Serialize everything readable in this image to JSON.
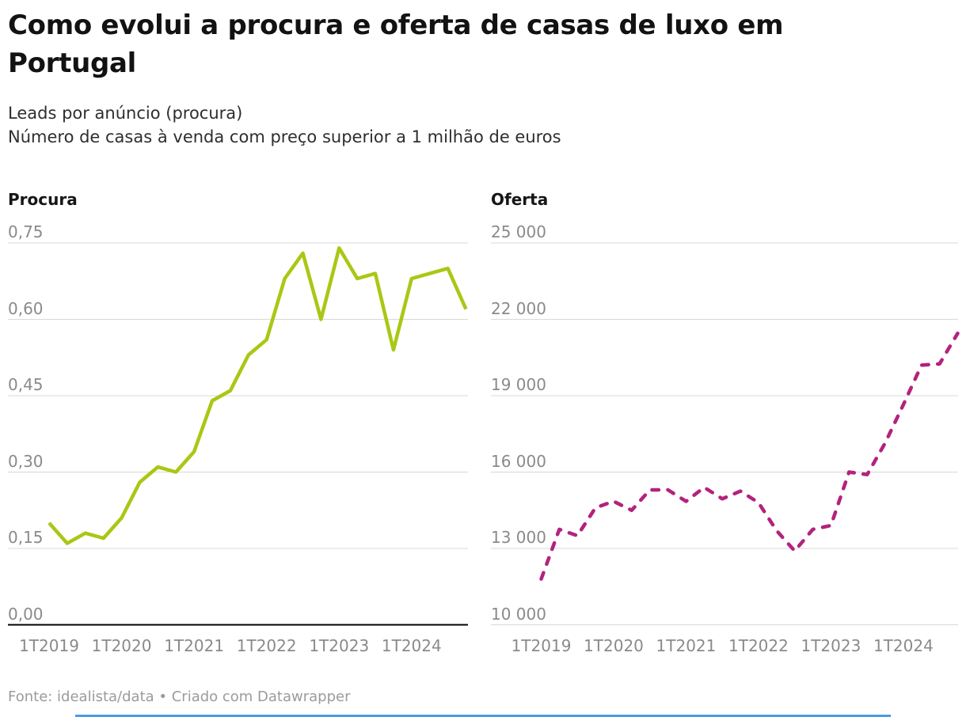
{
  "title": "Como evolui a procura e oferta de casas de luxo em Portugal",
  "subtitle": {
    "line1": "Leads por anúncio (procura)",
    "line2": "Número de casas à venda com preço superior a 1 milhão de euros"
  },
  "footer": "Fonte: idealista/data • Criado com Datawrapper",
  "colors": {
    "procura_line": "#a8c814",
    "oferta_line": "#b2237d",
    "grid": "#d8d8d8",
    "baseline": "#000000",
    "tick_text": "#8a8a8a",
    "title_text": "#121212",
    "subtitle_text": "#2e2e2e",
    "footer_text": "#9b9b9b",
    "bottom_strip": "#4a9de0"
  },
  "chart_data": [
    {
      "type": "line",
      "title": "Procura",
      "line_style": "solid",
      "color": "#a8c814",
      "x": [
        "1T2019",
        "2T2019",
        "3T2019",
        "4T2019",
        "1T2020",
        "2T2020",
        "3T2020",
        "4T2020",
        "1T2021",
        "2T2021",
        "3T2021",
        "4T2021",
        "1T2022",
        "2T2022",
        "3T2022",
        "4T2022",
        "1T2023",
        "2T2023",
        "3T2023",
        "4T2023",
        "1T2024",
        "2T2024",
        "3T2024",
        "4T2024"
      ],
      "values": [
        0.2,
        0.16,
        0.18,
        0.17,
        0.21,
        0.28,
        0.31,
        0.3,
        0.34,
        0.44,
        0.46,
        0.53,
        0.56,
        0.68,
        0.73,
        0.6,
        0.74,
        0.68,
        0.69,
        0.54,
        0.68,
        0.69,
        0.7,
        0.62
      ],
      "ylim": [
        0,
        0.75
      ],
      "grid": true,
      "y_ticks": [
        {
          "value": 0,
          "label": "0,00"
        },
        {
          "value": 0.15,
          "label": "0,15"
        },
        {
          "value": 0.3,
          "label": "0,30"
        },
        {
          "value": 0.45,
          "label": "0,45"
        },
        {
          "value": 0.6,
          "label": "0,60"
        },
        {
          "value": 0.75,
          "label": "0,75"
        }
      ]
    },
    {
      "type": "line",
      "title": "Oferta",
      "line_style": "dashed",
      "color": "#b2237d",
      "x": [
        "1T2019",
        "2T2019",
        "3T2019",
        "4T2019",
        "1T2020",
        "2T2020",
        "3T2020",
        "4T2020",
        "1T2021",
        "2T2021",
        "3T2021",
        "4T2021",
        "1T2022",
        "2T2022",
        "3T2022",
        "4T2022",
        "1T2023",
        "2T2023",
        "3T2023",
        "4T2023",
        "1T2024",
        "2T2024",
        "3T2024",
        "4T2024"
      ],
      "values": [
        11800,
        13750,
        13500,
        14600,
        14850,
        14500,
        15300,
        15300,
        14850,
        15400,
        14950,
        15250,
        14800,
        13700,
        12900,
        13750,
        13900,
        16000,
        15900,
        17150,
        18650,
        20200,
        20250,
        21450
      ],
      "ylim": [
        10000,
        25000
      ],
      "grid": true,
      "y_ticks": [
        {
          "value": 10000,
          "label": "10 000"
        },
        {
          "value": 13000,
          "label": "13 000"
        },
        {
          "value": 16000,
          "label": "16 000"
        },
        {
          "value": 19000,
          "label": "19 000"
        },
        {
          "value": 22000,
          "label": "22 000"
        },
        {
          "value": 25000,
          "label": "25 000"
        }
      ]
    }
  ]
}
